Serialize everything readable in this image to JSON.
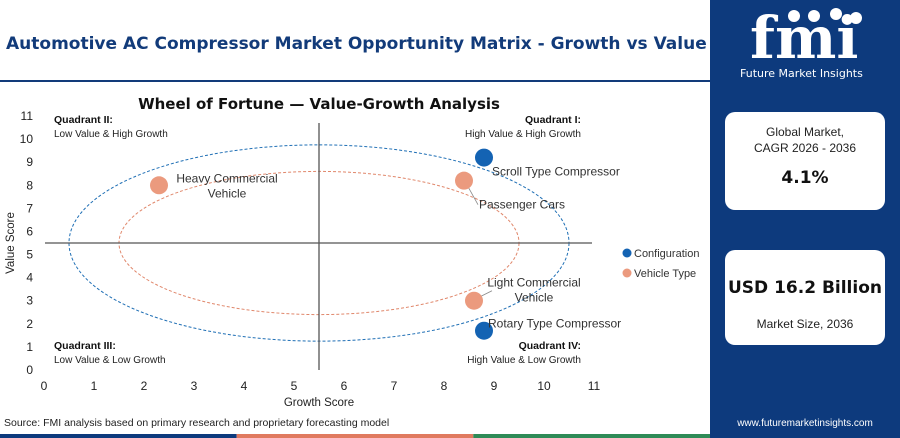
{
  "header": {
    "title": "Automotive AC Compressor Market Opportunity Matrix - Growth vs Value"
  },
  "sidebar": {
    "logo_text": "fmi",
    "logo_subtitle": "Future Market Insights",
    "cards": [
      {
        "label": "Global Market, CAGR 2026 - 2036",
        "label_lines": [
          "Global Market,",
          "CAGR 2026 - 2036"
        ],
        "value": "4.1%"
      },
      {
        "label": "Market Size, 2036",
        "value": "USD 16.2 Billion"
      }
    ],
    "website": "www.futuremarketinsights.com"
  },
  "footer": {
    "source": "Source: FMI analysis based on primary research and proprietary forecasting model"
  },
  "colors": {
    "brand": "#0d3a7d",
    "configuration": "#1463b3",
    "vehicle_type": "#eb9a7e",
    "outer_ellipse": "#1f6fb5",
    "inner_ellipse": "#e0876b",
    "bottom_bar": [
      "#0d3a7d",
      "#e07a5f",
      "#2e8b57"
    ]
  },
  "chart_data": {
    "type": "scatter",
    "title": "Wheel of Fortune — Value-Growth Analysis",
    "xlabel": "Growth Score",
    "ylabel": "Value Score",
    "xlim": [
      0,
      11
    ],
    "ylim": [
      0,
      11
    ],
    "xticks": [
      0,
      1,
      2,
      3,
      4,
      5,
      6,
      7,
      8,
      9,
      10,
      11
    ],
    "yticks": [
      0,
      1,
      2,
      3,
      4,
      5,
      6,
      7,
      8,
      9,
      10,
      11
    ],
    "divider_x": 5.5,
    "divider_y": 5.5,
    "grid": false,
    "legend_position": "right",
    "quadrants": [
      {
        "title": "Quadrant II:",
        "subtitle": "Low Value & High Growth",
        "position": "top-left"
      },
      {
        "title": "Quadrant I:",
        "subtitle": "High Value & High Growth",
        "position": "top-right"
      },
      {
        "title": "Quadrant III:",
        "subtitle": "Low Value & Low Growth",
        "position": "bottom-left"
      },
      {
        "title": "Quadrant IV:",
        "subtitle": "High Value & Low Growth",
        "position": "bottom-right"
      }
    ],
    "series": [
      {
        "name": "Configuration",
        "color": "#1463b3",
        "points": [
          {
            "label": "Scroll Type Compressor",
            "x": 8.8,
            "y": 9.2
          },
          {
            "label": "Rotary Type Compressor",
            "x": 8.8,
            "y": 1.7
          }
        ]
      },
      {
        "name": "Vehicle Type",
        "color": "#eb9a7e",
        "points": [
          {
            "label": "Heavy Commercial Vehicle",
            "label_lines": [
              "Heavy Commercial",
              "Vehicle"
            ],
            "x": 2.3,
            "y": 8.0
          },
          {
            "label": "Passenger Cars",
            "x": 8.4,
            "y": 8.2
          },
          {
            "label": "Light Commercial Vehicle",
            "label_lines": [
              "Light Commercial",
              "Vehicle"
            ],
            "x": 8.6,
            "y": 3.0
          }
        ]
      }
    ]
  }
}
